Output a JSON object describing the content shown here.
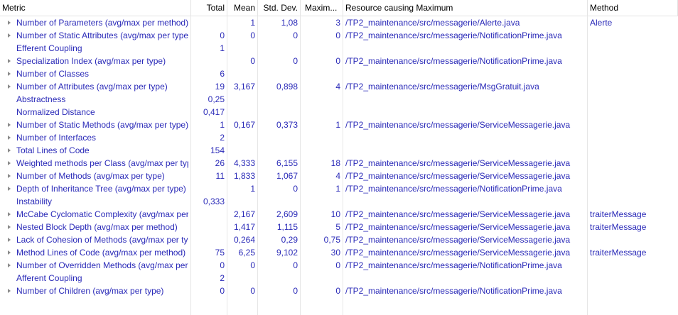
{
  "headers": {
    "metric": "Metric",
    "total": "Total",
    "mean": "Mean",
    "std": "Std. Dev.",
    "max": "Maxim...",
    "resource": "Resource causing Maximum",
    "method": "Method"
  },
  "colors": {
    "link": "#2a2ab8",
    "grid": "#e6e6e6",
    "expander": "#8a8a8a"
  },
  "rows": [
    {
      "metric": "Number of Parameters (avg/max per method)",
      "expandable": true,
      "total": "",
      "mean": "1",
      "std": "1,08",
      "max": "3",
      "resource": "/TP2_maintenance/src/messagerie/Alerte.java",
      "method": "Alerte"
    },
    {
      "metric": "Number of Static Attributes (avg/max per type)",
      "expandable": true,
      "total": "0",
      "mean": "0",
      "std": "0",
      "max": "0",
      "resource": "/TP2_maintenance/src/messagerie/NotificationPrime.java",
      "method": ""
    },
    {
      "metric": "Efferent Coupling",
      "expandable": false,
      "total": "1",
      "mean": "",
      "std": "",
      "max": "",
      "resource": "",
      "method": ""
    },
    {
      "metric": "Specialization Index (avg/max per type)",
      "expandable": true,
      "total": "",
      "mean": "0",
      "std": "0",
      "max": "0",
      "resource": "/TP2_maintenance/src/messagerie/NotificationPrime.java",
      "method": ""
    },
    {
      "metric": "Number of Classes",
      "expandable": true,
      "total": "6",
      "mean": "",
      "std": "",
      "max": "",
      "resource": "",
      "method": ""
    },
    {
      "metric": "Number of Attributes (avg/max per type)",
      "expandable": true,
      "total": "19",
      "mean": "3,167",
      "std": "0,898",
      "max": "4",
      "resource": "/TP2_maintenance/src/messagerie/MsgGratuit.java",
      "method": ""
    },
    {
      "metric": "Abstractness",
      "expandable": false,
      "total": "0,25",
      "mean": "",
      "std": "",
      "max": "",
      "resource": "",
      "method": ""
    },
    {
      "metric": "Normalized Distance",
      "expandable": false,
      "total": "0,417",
      "mean": "",
      "std": "",
      "max": "",
      "resource": "",
      "method": ""
    },
    {
      "metric": "Number of Static Methods (avg/max per type)",
      "expandable": true,
      "total": "1",
      "mean": "0,167",
      "std": "0,373",
      "max": "1",
      "resource": "/TP2_maintenance/src/messagerie/ServiceMessagerie.java",
      "method": ""
    },
    {
      "metric": "Number of Interfaces",
      "expandable": true,
      "total": "2",
      "mean": "",
      "std": "",
      "max": "",
      "resource": "",
      "method": ""
    },
    {
      "metric": "Total Lines of Code",
      "expandable": true,
      "total": "154",
      "mean": "",
      "std": "",
      "max": "",
      "resource": "",
      "method": ""
    },
    {
      "metric": "Weighted methods per Class (avg/max per type)",
      "expandable": true,
      "total": "26",
      "mean": "4,333",
      "std": "6,155",
      "max": "18",
      "resource": "/TP2_maintenance/src/messagerie/ServiceMessagerie.java",
      "method": ""
    },
    {
      "metric": "Number of Methods (avg/max per type)",
      "expandable": true,
      "total": "11",
      "mean": "1,833",
      "std": "1,067",
      "max": "4",
      "resource": "/TP2_maintenance/src/messagerie/ServiceMessagerie.java",
      "method": ""
    },
    {
      "metric": "Depth of Inheritance Tree (avg/max per type)",
      "expandable": true,
      "total": "",
      "mean": "1",
      "std": "0",
      "max": "1",
      "resource": "/TP2_maintenance/src/messagerie/NotificationPrime.java",
      "method": ""
    },
    {
      "metric": "Instability",
      "expandable": false,
      "total": "0,333",
      "mean": "",
      "std": "",
      "max": "",
      "resource": "",
      "method": ""
    },
    {
      "metric": "McCabe Cyclomatic Complexity (avg/max per method)",
      "expandable": true,
      "total": "",
      "mean": "2,167",
      "std": "2,609",
      "max": "10",
      "resource": "/TP2_maintenance/src/messagerie/ServiceMessagerie.java",
      "method": "traiterMessage"
    },
    {
      "metric": "Nested Block Depth (avg/max per method)",
      "expandable": true,
      "total": "",
      "mean": "1,417",
      "std": "1,115",
      "max": "5",
      "resource": "/TP2_maintenance/src/messagerie/ServiceMessagerie.java",
      "method": "traiterMessage"
    },
    {
      "metric": "Lack of Cohesion of Methods (avg/max per type)",
      "expandable": true,
      "total": "",
      "mean": "0,264",
      "std": "0,29",
      "max": "0,75",
      "resource": "/TP2_maintenance/src/messagerie/ServiceMessagerie.java",
      "method": ""
    },
    {
      "metric": "Method Lines of Code (avg/max per method)",
      "expandable": true,
      "total": "75",
      "mean": "6,25",
      "std": "9,102",
      "max": "30",
      "resource": "/TP2_maintenance/src/messagerie/ServiceMessagerie.java",
      "method": "traiterMessage"
    },
    {
      "metric": "Number of Overridden Methods (avg/max per type)",
      "expandable": true,
      "total": "0",
      "mean": "0",
      "std": "0",
      "max": "0",
      "resource": "/TP2_maintenance/src/messagerie/NotificationPrime.java",
      "method": ""
    },
    {
      "metric": "Afferent Coupling",
      "expandable": false,
      "total": "2",
      "mean": "",
      "std": "",
      "max": "",
      "resource": "",
      "method": ""
    },
    {
      "metric": "Number of Children (avg/max per type)",
      "expandable": true,
      "total": "0",
      "mean": "0",
      "std": "0",
      "max": "0",
      "resource": "/TP2_maintenance/src/messagerie/NotificationPrime.java",
      "method": ""
    }
  ]
}
